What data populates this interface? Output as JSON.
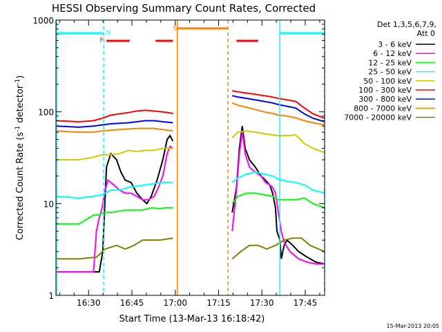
{
  "chart_data": {
    "type": "line",
    "title": "HESSI Observing Summary Count Rates, Corrected",
    "xlabel": "Start Time (13-Mar-13 16:18:42)",
    "ylabel": "Corrected Count Rate (s",
    "ylabel_sup1": "-1",
    "ylabel_mid": " detector",
    "ylabel_sup2": "-1",
    "ylabel_end": ")",
    "y_scale": "log",
    "ylim": [
      1,
      1000
    ],
    "xlim_minutes": [
      0,
      93
    ],
    "x_tick_labels": [
      "16:30",
      "16:45",
      "17:00",
      "17:15",
      "17:30",
      "17:45"
    ],
    "x_tick_minutes": [
      11.3,
      26.3,
      41.3,
      56.3,
      71.3,
      86.3
    ],
    "y_tick_labels": [
      "1",
      "10",
      "100",
      "1000"
    ],
    "y_tick_values": [
      1,
      10,
      100,
      1000
    ],
    "legend_header": [
      "Det 1,3,5,6,7,9,",
      "Att 0"
    ],
    "footer_date": "15-Mar-2013 20:05",
    "flags": [
      {
        "label": "F",
        "color": "#ff0000",
        "label_at": 15.8,
        "segments": [
          [
            17.5,
            25.5
          ],
          [
            34.5,
            40.5
          ],
          [
            62.5,
            70
          ]
        ]
      },
      {
        "label": "N",
        "color": "#00ffff",
        "label_at": 18.2,
        "segments": [
          [
            0,
            16.5
          ],
          [
            77.5,
            93
          ]
        ]
      },
      {
        "label": "S",
        "color": "#ff8000",
        "label_at": 41.2,
        "segments": [
          [
            42,
            59.5
          ]
        ]
      }
    ],
    "markers": [
      {
        "color": "#00ffff",
        "style": "solid",
        "at_minute": 0.2
      },
      {
        "color": "#00ffff",
        "style": "dashed",
        "at_minute": 16.5
      },
      {
        "color": "#ff8000",
        "style": "solid",
        "at_minute": 42
      },
      {
        "color": "#ff8000",
        "style": "dashed",
        "at_minute": 59.5
      },
      {
        "color": "#00ffff",
        "style": "solid",
        "at_minute": 77.5
      },
      {
        "color": "#00ffff",
        "style": "dashed",
        "at_minute": 93
      }
    ],
    "gap_minutes": [
      40.7,
      60.8
    ],
    "series": [
      {
        "name": "3 - 6 keV",
        "color": "#000000",
        "points": [
          [
            0,
            1.8
          ],
          [
            8,
            1.8
          ],
          [
            15,
            1.8
          ],
          [
            16.2,
            3
          ],
          [
            17.5,
            25
          ],
          [
            19,
            35
          ],
          [
            21,
            30
          ],
          [
            22.5,
            22
          ],
          [
            24,
            18
          ],
          [
            26,
            17
          ],
          [
            28,
            13
          ],
          [
            30,
            11
          ],
          [
            31.5,
            10
          ],
          [
            33,
            12
          ],
          [
            35,
            18
          ],
          [
            37,
            30
          ],
          [
            38.5,
            50
          ],
          [
            39.5,
            55
          ],
          [
            40.5,
            48
          ],
          [
            61,
            8
          ],
          [
            62.5,
            15
          ],
          [
            63.5,
            40
          ],
          [
            64.5,
            70
          ],
          [
            65.5,
            40
          ],
          [
            67,
            30
          ],
          [
            69,
            25
          ],
          [
            71,
            20
          ],
          [
            72.5,
            18
          ],
          [
            74,
            16
          ],
          [
            75,
            13
          ],
          [
            76,
            9
          ],
          [
            76.5,
            5
          ],
          [
            77.5,
            4
          ],
          [
            78,
            2.5
          ],
          [
            79,
            3.5
          ],
          [
            80,
            4
          ],
          [
            82,
            3.5
          ],
          [
            84,
            3
          ],
          [
            87,
            2.6
          ],
          [
            90,
            2.3
          ],
          [
            93,
            2.2
          ]
        ]
      },
      {
        "name": "6 - 12 keV",
        "color": "#ff00ff",
        "points": [
          [
            0,
            1.8
          ],
          [
            8,
            1.8
          ],
          [
            13,
            1.8
          ],
          [
            14,
            5
          ],
          [
            15,
            7
          ],
          [
            16,
            9
          ],
          [
            17,
            14
          ],
          [
            18,
            18
          ],
          [
            20,
            16
          ],
          [
            22,
            14
          ],
          [
            24,
            13
          ],
          [
            26,
            13
          ],
          [
            28,
            12
          ],
          [
            30,
            11
          ],
          [
            32,
            11
          ],
          [
            34,
            12
          ],
          [
            35.5,
            15
          ],
          [
            37,
            20
          ],
          [
            38.5,
            35
          ],
          [
            39.5,
            42
          ],
          [
            40.5,
            40
          ],
          [
            61,
            5
          ],
          [
            62.5,
            14
          ],
          [
            63.5,
            35
          ],
          [
            64.5,
            60
          ],
          [
            65.5,
            35
          ],
          [
            67,
            25
          ],
          [
            69,
            22
          ],
          [
            71,
            20
          ],
          [
            72.5,
            17
          ],
          [
            74,
            16
          ],
          [
            75,
            15
          ],
          [
            76,
            13
          ],
          [
            77,
            8
          ],
          [
            78,
            5
          ],
          [
            79,
            3.8
          ],
          [
            81,
            3
          ],
          [
            84,
            2.5
          ],
          [
            87,
            2.3
          ],
          [
            90,
            2.2
          ],
          [
            93,
            2.2
          ]
        ]
      },
      {
        "name": "12 - 25 keV",
        "color": "#00ff00",
        "points": [
          [
            0,
            6
          ],
          [
            8,
            6
          ],
          [
            13,
            7.5
          ],
          [
            15,
            7.5
          ],
          [
            16.5,
            8
          ],
          [
            19,
            8
          ],
          [
            21,
            8.2
          ],
          [
            24,
            8.5
          ],
          [
            27,
            8.5
          ],
          [
            30,
            8.5
          ],
          [
            33,
            9
          ],
          [
            36,
            8.8
          ],
          [
            38,
            9
          ],
          [
            40.5,
            9
          ],
          [
            61,
            10
          ],
          [
            63,
            12
          ],
          [
            66,
            13
          ],
          [
            69,
            13
          ],
          [
            72,
            12.5
          ],
          [
            75,
            12
          ],
          [
            77,
            11
          ],
          [
            80,
            11
          ],
          [
            83,
            11
          ],
          [
            86,
            11.5
          ],
          [
            89,
            10
          ],
          [
            93,
            9
          ]
        ]
      },
      {
        "name": "25 - 50 keV",
        "color": "#00ffff",
        "points": [
          [
            0,
            12
          ],
          [
            8,
            11.5
          ],
          [
            13,
            12
          ],
          [
            16,
            12.5
          ],
          [
            19,
            14
          ],
          [
            22,
            14
          ],
          [
            25,
            15
          ],
          [
            28,
            15.5
          ],
          [
            31,
            16
          ],
          [
            34,
            16.5
          ],
          [
            37,
            17
          ],
          [
            40.5,
            17
          ],
          [
            61,
            17
          ],
          [
            63,
            19
          ],
          [
            66,
            21
          ],
          [
            69,
            22
          ],
          [
            72,
            21
          ],
          [
            75,
            20
          ],
          [
            77,
            18.5
          ],
          [
            80,
            17.5
          ],
          [
            83,
            17
          ],
          [
            86,
            16
          ],
          [
            89,
            14
          ],
          [
            93,
            13
          ]
        ]
      },
      {
        "name": "50 - 100 keV",
        "color": "#d4c800",
        "points": [
          [
            0,
            30
          ],
          [
            8,
            30
          ],
          [
            13,
            32
          ],
          [
            16,
            34
          ],
          [
            19,
            34
          ],
          [
            22,
            35
          ],
          [
            25,
            38
          ],
          [
            28,
            37
          ],
          [
            31,
            38
          ],
          [
            34,
            38
          ],
          [
            37,
            40
          ],
          [
            40.5,
            40
          ],
          [
            61,
            52
          ],
          [
            63,
            60
          ],
          [
            66,
            62
          ],
          [
            69,
            60
          ],
          [
            72,
            58
          ],
          [
            75,
            56
          ],
          [
            77,
            55
          ],
          [
            80,
            55
          ],
          [
            83,
            56
          ],
          [
            86,
            45
          ],
          [
            89,
            40
          ],
          [
            93,
            36
          ]
        ]
      },
      {
        "name": "100 - 300 keV",
        "color": "#ff0000",
        "points": [
          [
            0,
            80
          ],
          [
            8,
            78
          ],
          [
            13,
            80
          ],
          [
            16,
            85
          ],
          [
            19,
            92
          ],
          [
            22,
            95
          ],
          [
            25,
            98
          ],
          [
            28,
            102
          ],
          [
            31,
            104
          ],
          [
            34,
            102
          ],
          [
            37,
            100
          ],
          [
            40.5,
            96
          ],
          [
            61,
            170
          ],
          [
            63,
            165
          ],
          [
            66,
            160
          ],
          [
            69,
            155
          ],
          [
            72,
            150
          ],
          [
            75,
            145
          ],
          [
            77,
            140
          ],
          [
            80,
            135
          ],
          [
            83,
            130
          ],
          [
            86,
            110
          ],
          [
            89,
            95
          ],
          [
            93,
            85
          ]
        ]
      },
      {
        "name": "300 - 800 keV",
        "color": "#0000ff",
        "points": [
          [
            0,
            70
          ],
          [
            8,
            68
          ],
          [
            13,
            70
          ],
          [
            16,
            72
          ],
          [
            19,
            74
          ],
          [
            22,
            75
          ],
          [
            25,
            76
          ],
          [
            28,
            78
          ],
          [
            31,
            80
          ],
          [
            34,
            80
          ],
          [
            37,
            78
          ],
          [
            40.5,
            76
          ],
          [
            61,
            150
          ],
          [
            63,
            145
          ],
          [
            66,
            140
          ],
          [
            69,
            135
          ],
          [
            72,
            130
          ],
          [
            75,
            125
          ],
          [
            77,
            120
          ],
          [
            80,
            115
          ],
          [
            83,
            110
          ],
          [
            86,
            95
          ],
          [
            89,
            85
          ],
          [
            93,
            78
          ]
        ]
      },
      {
        "name": "800 - 7000 keV",
        "color": "#ff8000",
        "points": [
          [
            0,
            62
          ],
          [
            8,
            60
          ],
          [
            13,
            60
          ],
          [
            16,
            62
          ],
          [
            19,
            63
          ],
          [
            22,
            64
          ],
          [
            25,
            65
          ],
          [
            28,
            66
          ],
          [
            31,
            66
          ],
          [
            34,
            66
          ],
          [
            37,
            64
          ],
          [
            40.5,
            62
          ],
          [
            61,
            125
          ],
          [
            63,
            118
          ],
          [
            66,
            112
          ],
          [
            69,
            106
          ],
          [
            72,
            100
          ],
          [
            75,
            96
          ],
          [
            77,
            92
          ],
          [
            80,
            90
          ],
          [
            83,
            86
          ],
          [
            86,
            80
          ],
          [
            89,
            76
          ],
          [
            93,
            72
          ]
        ]
      },
      {
        "name": "7000 - 20000 keV",
        "color": "#808000",
        "points": [
          [
            0,
            2.5
          ],
          [
            8,
            2.5
          ],
          [
            14,
            2.6
          ],
          [
            17,
            3.2
          ],
          [
            21,
            3.5
          ],
          [
            24,
            3.2
          ],
          [
            27,
            3.5
          ],
          [
            30,
            4
          ],
          [
            33,
            4
          ],
          [
            36,
            4
          ],
          [
            40.5,
            4.2
          ],
          [
            61,
            2.5
          ],
          [
            64,
            3
          ],
          [
            67,
            3.5
          ],
          [
            70,
            3.5
          ],
          [
            73,
            3.2
          ],
          [
            76,
            3.5
          ],
          [
            79,
            4
          ],
          [
            82,
            4.2
          ],
          [
            85,
            4.2
          ],
          [
            88,
            3.5
          ],
          [
            93,
            3
          ]
        ]
      }
    ]
  }
}
